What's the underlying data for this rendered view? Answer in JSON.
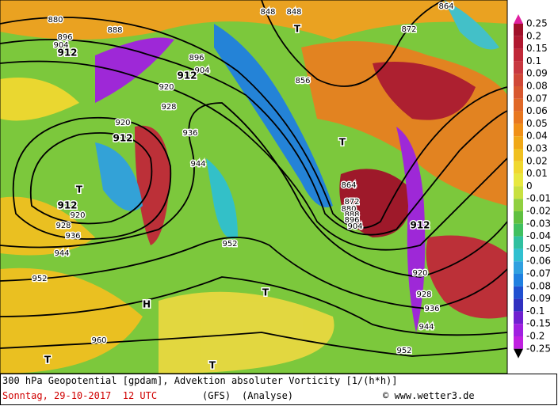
{
  "map": {
    "labels": [
      "880",
      "896",
      "904",
      "888",
      "912",
      "896",
      "904",
      "912",
      "920",
      "928",
      "920",
      "912",
      "936",
      "944",
      "T",
      "912",
      "920",
      "928",
      "936",
      "944",
      "952",
      "952",
      "848",
      "848",
      "T",
      "856",
      "872",
      "864",
      "T",
      "864",
      "872",
      "880",
      "888",
      "896",
      "904",
      "912",
      "920",
      "928",
      "936",
      "944",
      "952",
      "960",
      "T",
      "H",
      "T",
      "T"
    ],
    "colorbar": {
      "ticks": [
        0.25,
        0.2,
        0.15,
        0.1,
        0.09,
        0.08,
        0.07,
        0.06,
        0.05,
        0.04,
        0.03,
        0.02,
        0.01,
        0,
        -0.01,
        -0.02,
        -0.03,
        -0.04,
        -0.05,
        -0.06,
        -0.07,
        -0.08,
        -0.09,
        -0.1,
        -0.15,
        -0.2,
        -0.25
      ],
      "colors": [
        "#a0102a",
        "#b01830",
        "#c02838",
        "#c83840",
        "#d04838",
        "#d85830",
        "#e06828",
        "#e87820",
        "#f09018",
        "#f0a818",
        "#f0c020",
        "#f0d830",
        "#e8e840",
        "#c8e040",
        "#90d040",
        "#60c040",
        "#40c060",
        "#30c0a0",
        "#30c0d0",
        "#30a0e0",
        "#2080e0",
        "#2050d0",
        "#3030c0",
        "#7020d0",
        "#a020e0",
        "#c020e0"
      ]
    },
    "caption": {
      "line1": "300 hPa Geopotential [gpdam], Advektion absoluter Vorticity [1/(h*h)]",
      "date": "Sonntag, 29-10-2017  12 UTC",
      "model": "(GFS)",
      "run": "(Analyse)",
      "credit": "© www.wetter3.de"
    }
  }
}
